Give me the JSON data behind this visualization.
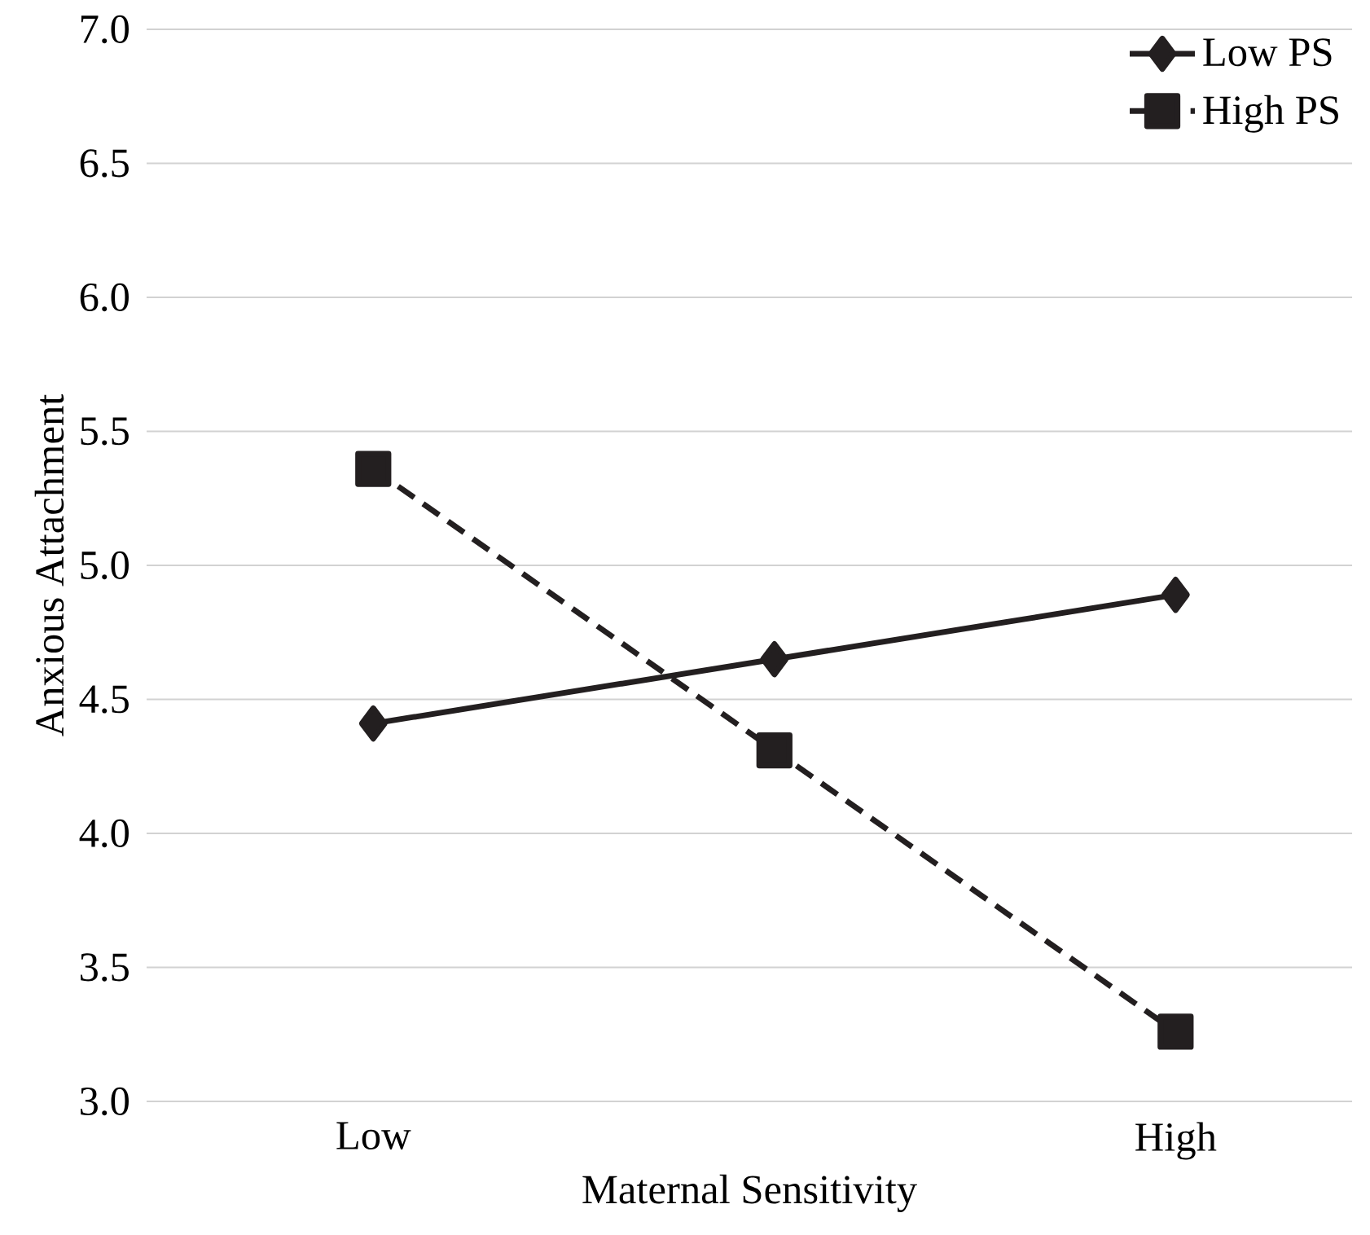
{
  "chart_data": {
    "type": "line",
    "xlabel": "Maternal Sensitivity",
    "ylabel": "Anxious Attachment",
    "categories": [
      "Low",
      null,
      "High"
    ],
    "series": [
      {
        "name": "Low PS",
        "color": "#231f20",
        "values": [
          4.41,
          4.65,
          4.89
        ],
        "marker": "diamond",
        "line_style": "solid"
      },
      {
        "name": "High PS",
        "color": "#231f20",
        "values": [
          5.36,
          4.31,
          3.26
        ],
        "marker": "square",
        "line_style": "dashed"
      }
    ],
    "ylim": [
      3.0,
      7.0
    ],
    "yticks": [
      {
        "value": 3,
        "label": "3.0"
      },
      {
        "value": 3.5,
        "label": "3.5"
      },
      {
        "value": 4,
        "label": "4.0"
      },
      {
        "value": 4.5,
        "label": "4.5"
      },
      {
        "value": 5,
        "label": "5.0"
      },
      {
        "value": 5.5,
        "label": "5.5"
      },
      {
        "value": 6,
        "label": "6.0"
      },
      {
        "value": 6.5,
        "label": "6.5"
      },
      {
        "value": 7,
        "label": "7.0"
      }
    ],
    "grid": "y",
    "legend": "top right"
  }
}
